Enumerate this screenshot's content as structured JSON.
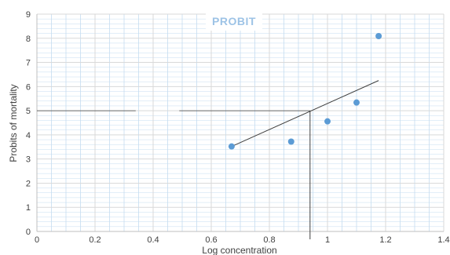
{
  "chart_data": {
    "type": "scatter",
    "title": "PROBIT",
    "xlabel": "Log concentration",
    "ylabel": "Probits of mortality",
    "xlim": [
      0,
      1.4
    ],
    "ylim": [
      0,
      9
    ],
    "x_ticks": [
      0,
      0.2,
      0.4,
      0.6,
      0.8,
      1,
      1.2,
      1.4
    ],
    "x_tick_labels": [
      "0",
      "0.2",
      "0.4",
      "0.6",
      "0.8",
      "1",
      "1.2",
      "1.4"
    ],
    "y_ticks": [
      0,
      1,
      2,
      3,
      4,
      5,
      6,
      7,
      8,
      9
    ],
    "y_tick_labels": [
      "0",
      "1",
      "2",
      "3",
      "4",
      "5",
      "6",
      "7",
      "8",
      "9"
    ],
    "grid": true,
    "series": [
      {
        "points": [
          {
            "x": 0.67,
            "y": 3.52
          },
          {
            "x": 0.875,
            "y": 3.72
          },
          {
            "x": 1.0,
            "y": 4.56
          },
          {
            "x": 1.1,
            "y": 5.34
          },
          {
            "x": 1.176,
            "y": 8.09
          }
        ]
      }
    ],
    "trendline": {
      "from": {
        "x": 0.67,
        "y": 3.52
      },
      "to": {
        "x": 1.176,
        "y": 6.25
      }
    },
    "reference_lines": {
      "y": 5,
      "x": 0.94
    },
    "colors": {
      "points": "#5b9bd5",
      "trendline": "#404040",
      "grid_major": "#d9d9d9",
      "grid_minor": "#c5dcf0",
      "title": "#9dc3e6"
    }
  }
}
